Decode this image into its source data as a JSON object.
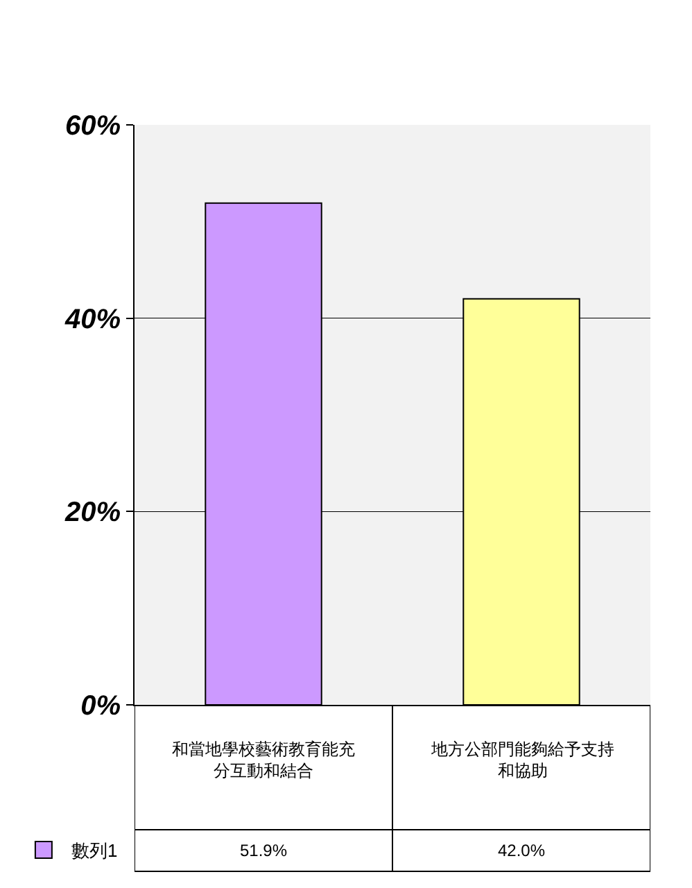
{
  "chart_data": {
    "type": "bar",
    "categories": [
      "和當地學校藝術教育能充分互動和結合",
      "地方公部門能夠給予支持和協助"
    ],
    "series": [
      {
        "name": "數列1",
        "color": "#cc99ff",
        "colors": [
          "#cc99ff",
          "#ffff99"
        ],
        "values": [
          51.9,
          42.0
        ],
        "value_labels": [
          "51.9%",
          "42.0%"
        ]
      }
    ],
    "ylim": [
      0,
      60
    ],
    "yticks": [
      {
        "value": 0,
        "label": "0%"
      },
      {
        "value": 20,
        "label": "20%"
      },
      {
        "value": 40,
        "label": "40%"
      },
      {
        "value": 60,
        "label": "60%"
      }
    ],
    "grid": "y",
    "legend": "bottom left"
  }
}
